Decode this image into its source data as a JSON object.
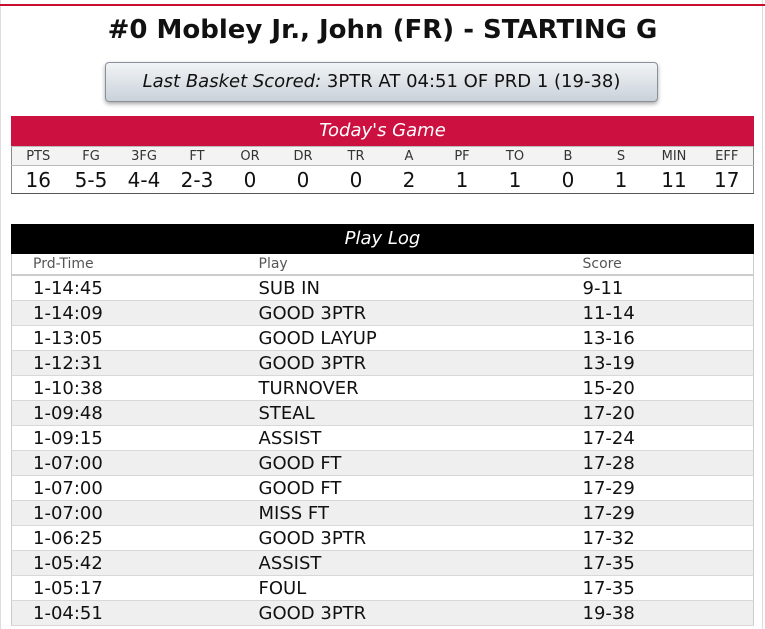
{
  "player": {
    "title": "#0 Mobley Jr., John (FR) - STARTING G"
  },
  "last_basket": {
    "label": "Last Basket Scored:",
    "value": "3PTR AT 04:51 OF PRD 1 (19-38)"
  },
  "todays_game": {
    "title": "Today's Game",
    "headers": [
      "PTS",
      "FG",
      "3FG",
      "FT",
      "OR",
      "DR",
      "TR",
      "A",
      "PF",
      "TO",
      "B",
      "S",
      "MIN",
      "EFF"
    ],
    "values": [
      "16",
      "5-5",
      "4-4",
      "2-3",
      "0",
      "0",
      "0",
      "2",
      "1",
      "1",
      "0",
      "1",
      "11",
      "17"
    ]
  },
  "play_log": {
    "title": "Play Log",
    "headers": {
      "time": "Prd-Time",
      "play": "Play",
      "score": "Score"
    },
    "rows": [
      {
        "time": "1-14:45",
        "play": "SUB IN",
        "score": "9-11"
      },
      {
        "time": "1-14:09",
        "play": "GOOD 3PTR",
        "score": "11-14"
      },
      {
        "time": "1-13:05",
        "play": "GOOD LAYUP",
        "score": "13-16"
      },
      {
        "time": "1-12:31",
        "play": "GOOD 3PTR",
        "score": "13-19"
      },
      {
        "time": "1-10:38",
        "play": "TURNOVER",
        "score": "15-20"
      },
      {
        "time": "1-09:48",
        "play": "STEAL",
        "score": "17-20"
      },
      {
        "time": "1-09:15",
        "play": "ASSIST",
        "score": "17-24"
      },
      {
        "time": "1-07:00",
        "play": "GOOD FT",
        "score": "17-28"
      },
      {
        "time": "1-07:00",
        "play": "GOOD FT",
        "score": "17-29"
      },
      {
        "time": "1-07:00",
        "play": "MISS FT",
        "score": "17-29"
      },
      {
        "time": "1-06:25",
        "play": "GOOD 3PTR",
        "score": "17-32"
      },
      {
        "time": "1-05:42",
        "play": "ASSIST",
        "score": "17-35"
      },
      {
        "time": "1-05:17",
        "play": "FOUL",
        "score": "17-35"
      },
      {
        "time": "1-04:51",
        "play": "GOOD 3PTR",
        "score": "19-38"
      }
    ]
  },
  "colors": {
    "accent_red": "#cc1140",
    "header_black": "#000000"
  }
}
